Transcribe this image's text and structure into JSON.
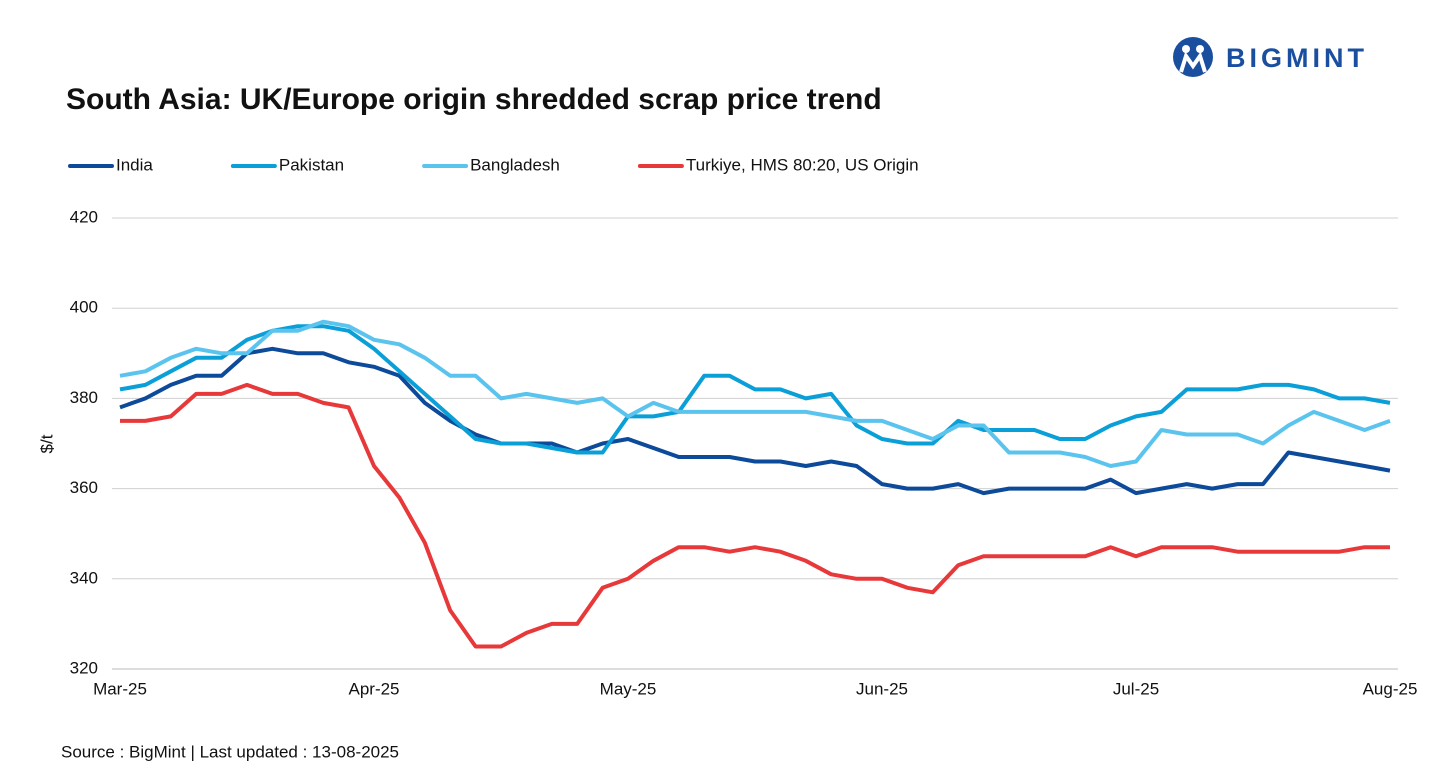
{
  "brand": "BIGMINT",
  "chart_data": {
    "type": "line",
    "title": "South Asia: UK/Europe origin shredded scrap price trend",
    "y_label": "$/t",
    "source": "Source : BigMint | Last updated : 13-08-2025",
    "categories": [
      "Mar-25",
      null,
      null,
      null,
      null,
      null,
      null,
      null,
      null,
      null,
      "Apr-25",
      null,
      null,
      null,
      null,
      null,
      null,
      null,
      null,
      null,
      "May-25",
      null,
      null,
      null,
      null,
      null,
      null,
      null,
      null,
      null,
      "Jun-25",
      null,
      null,
      null,
      null,
      null,
      null,
      null,
      null,
      null,
      "Jul-25",
      null,
      null,
      null,
      null,
      null,
      null,
      null,
      null,
      null,
      "Aug-25"
    ],
    "ylim": [
      320,
      420
    ],
    "yticks": [
      320,
      340,
      360,
      380,
      400,
      420
    ],
    "grid": true,
    "legend": "top",
    "series": [
      {
        "name": "India",
        "color": "#0d4a9a",
        "values": [
          378,
          380,
          383,
          385,
          385,
          390,
          391,
          390,
          390,
          388,
          387,
          385,
          379,
          375,
          372,
          370,
          370,
          370,
          368,
          370,
          371,
          369,
          367,
          367,
          367,
          366,
          366,
          365,
          366,
          365,
          361,
          360,
          360,
          361,
          359,
          360,
          360,
          360,
          360,
          362,
          359,
          360,
          361,
          360,
          361,
          361,
          368,
          367,
          366,
          365,
          364
        ]
      },
      {
        "name": "Pakistan",
        "color": "#0b9fd8",
        "values": [
          382,
          383,
          386,
          389,
          389,
          393,
          395,
          396,
          396,
          395,
          391,
          386,
          381,
          376,
          371,
          370,
          370,
          369,
          368,
          368,
          376,
          376,
          377,
          385,
          385,
          382,
          382,
          380,
          381,
          374,
          371,
          370,
          370,
          375,
          373,
          373,
          373,
          371,
          371,
          374,
          376,
          377,
          382,
          382,
          382,
          383,
          383,
          382,
          380,
          380,
          379
        ]
      },
      {
        "name": "Bangladesh",
        "color": "#5bc4ee",
        "values": [
          385,
          386,
          389,
          391,
          390,
          390,
          395,
          395,
          397,
          396,
          393,
          392,
          389,
          385,
          385,
          380,
          381,
          380,
          379,
          380,
          376,
          379,
          377,
          377,
          377,
          377,
          377,
          377,
          376,
          375,
          375,
          373,
          371,
          374,
          374,
          368,
          368,
          368,
          367,
          365,
          366,
          373,
          372,
          372,
          372,
          370,
          374,
          377,
          375,
          373,
          375
        ]
      },
      {
        "name": "Turkiye, HMS 80:20, US Origin",
        "color": "#e8393a",
        "values": [
          375,
          375,
          376,
          381,
          381,
          383,
          381,
          381,
          379,
          378,
          365,
          358,
          348,
          333,
          325,
          325,
          328,
          330,
          330,
          338,
          340,
          344,
          347,
          347,
          346,
          347,
          346,
          344,
          341,
          340,
          340,
          338,
          337,
          343,
          345,
          345,
          345,
          345,
          345,
          347,
          345,
          347,
          347,
          347,
          346,
          346,
          346,
          346,
          346,
          347,
          347
        ]
      }
    ]
  }
}
